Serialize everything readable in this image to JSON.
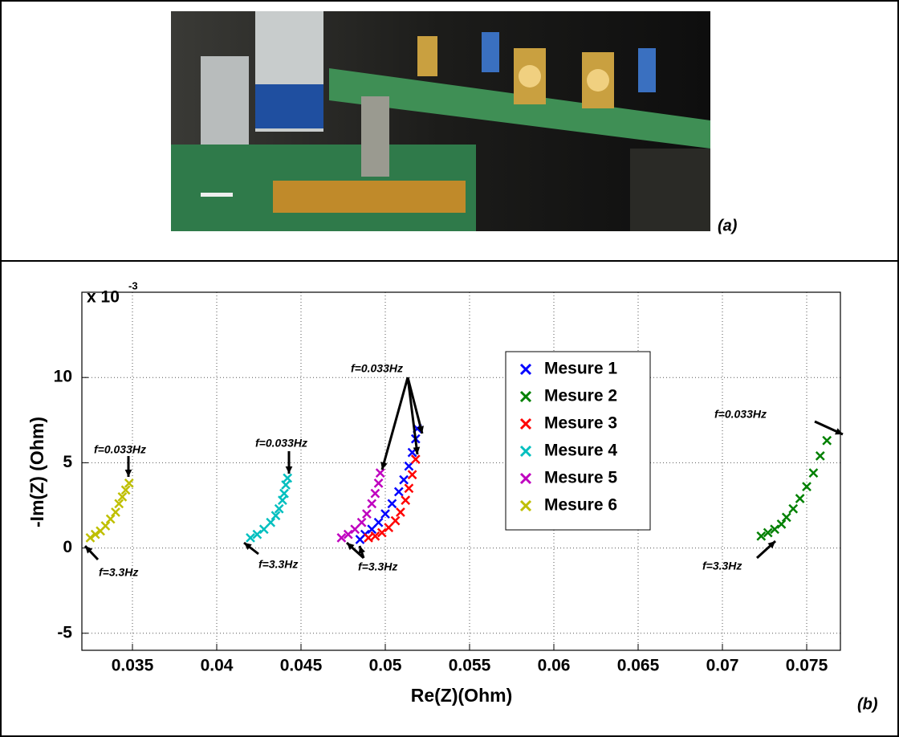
{
  "panel_labels": [
    "(a)",
    "(b)"
  ],
  "chart_data": {
    "type": "scatter",
    "xlabel": "Re(Z)(Ohm)",
    "ylabel": "-Im(Z) (Ohm)",
    "y_multiplier": {
      "base": "x 10",
      "exponent": "-3"
    },
    "xlim": [
      0.032,
      0.077
    ],
    "ylim": [
      -6,
      15
    ],
    "xticks": [
      0.035,
      0.04,
      0.045,
      0.05,
      0.055,
      0.06,
      0.065,
      0.07,
      0.075
    ],
    "yticks": [
      -5,
      0,
      5,
      10
    ],
    "grid": true,
    "legend": "upper-center",
    "series": [
      {
        "name": "Mesure 1",
        "color": "#0000ff",
        "x": [
          0.0485,
          0.0488,
          0.0492,
          0.0496,
          0.05,
          0.0504,
          0.0508,
          0.0511,
          0.0514,
          0.0516,
          0.0518,
          0.0519
        ],
        "values": [
          0.5,
          0.8,
          1.1,
          1.5,
          2.0,
          2.6,
          3.3,
          4.0,
          4.8,
          5.6,
          6.4,
          7.0
        ]
      },
      {
        "name": "Mesure 2",
        "color": "#008000",
        "x": [
          0.0723,
          0.0727,
          0.0731,
          0.0735,
          0.0738,
          0.0742,
          0.0746,
          0.075,
          0.0754,
          0.0758,
          0.0762
        ],
        "values": [
          0.7,
          0.9,
          1.1,
          1.4,
          1.8,
          2.3,
          2.9,
          3.6,
          4.4,
          5.4,
          6.3
        ]
      },
      {
        "name": "Mesure 3",
        "color": "#ff0000",
        "x": [
          0.049,
          0.0494,
          0.0498,
          0.0502,
          0.0506,
          0.0509,
          0.0512,
          0.0514,
          0.0516,
          0.0518
        ],
        "values": [
          0.6,
          0.7,
          0.9,
          1.2,
          1.6,
          2.1,
          2.8,
          3.5,
          4.3,
          5.2
        ]
      },
      {
        "name": "Mesure 4",
        "color": "#00bfbf",
        "x": [
          0.042,
          0.0424,
          0.0428,
          0.0432,
          0.0435,
          0.0437,
          0.0439,
          0.044,
          0.0441,
          0.0442
        ],
        "values": [
          0.6,
          0.8,
          1.1,
          1.5,
          1.9,
          2.3,
          2.8,
          3.2,
          3.7,
          4.1
        ]
      },
      {
        "name": "Mesure 5",
        "color": "#bf00bf",
        "x": [
          0.0474,
          0.0478,
          0.0482,
          0.0486,
          0.0489,
          0.0492,
          0.0494,
          0.0496,
          0.0497
        ],
        "values": [
          0.6,
          0.8,
          1.1,
          1.5,
          2.0,
          2.6,
          3.2,
          3.8,
          4.4
        ]
      },
      {
        "name": "Mesure 6",
        "color": "#bfbf00",
        "x": [
          0.0325,
          0.0328,
          0.0331,
          0.0334,
          0.0337,
          0.034,
          0.0342,
          0.0344,
          0.0346,
          0.0348
        ],
        "values": [
          0.6,
          0.8,
          1.0,
          1.3,
          1.7,
          2.1,
          2.6,
          3.0,
          3.4,
          3.8
        ]
      }
    ],
    "annotations": [
      "f=0.033Hz",
      "f=0.033Hz",
      "f=0.033Hz",
      "f=0.033Hz",
      "f=3.3Hz",
      "f=3.3Hz",
      "f=3.3Hz",
      "f=3.3Hz"
    ]
  }
}
